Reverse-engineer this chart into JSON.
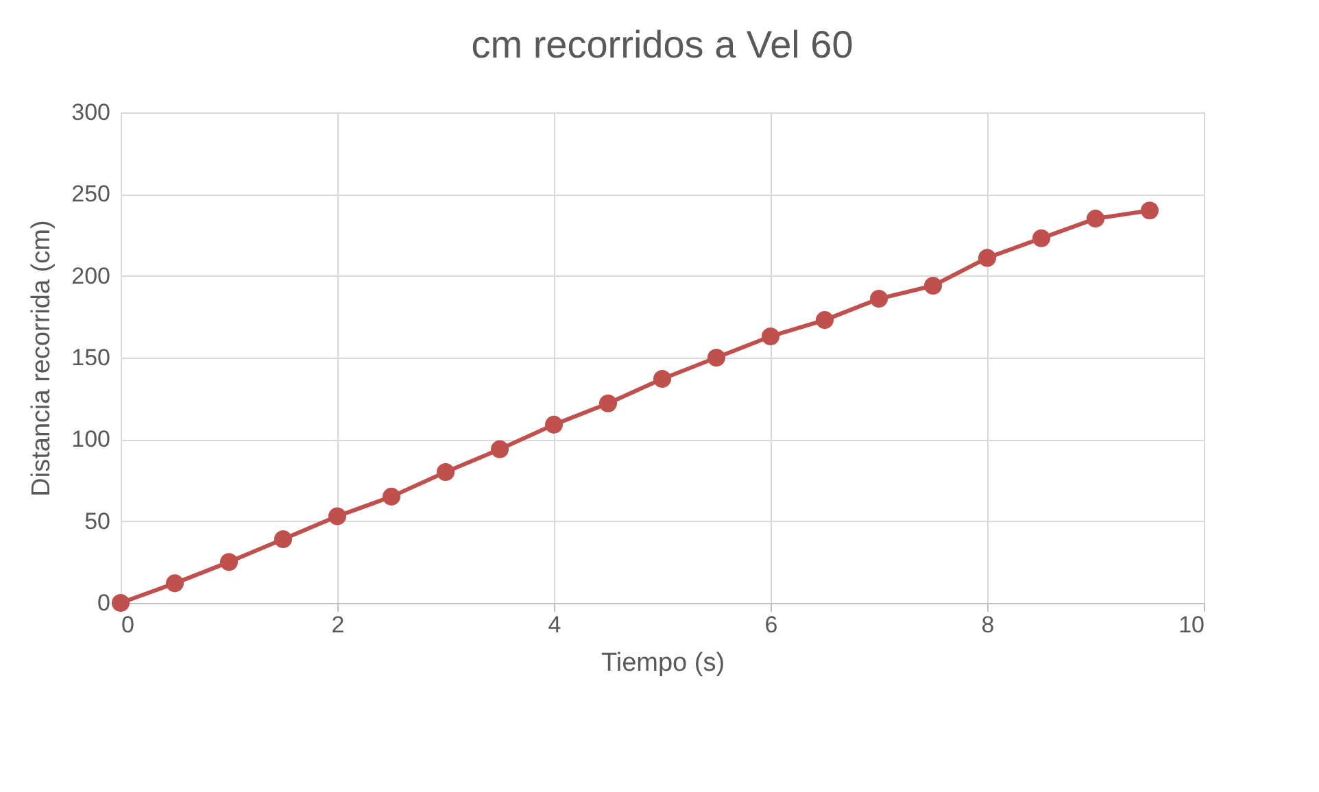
{
  "chart_data": {
    "type": "line",
    "title": "cm recorridos a Vel 60",
    "xlabel": "Tiempo (s)",
    "ylabel": "Distancia recorrida (cm)",
    "x": [
      0,
      0.5,
      1,
      1.5,
      2,
      2.5,
      3,
      3.5,
      4,
      4.5,
      5,
      5.5,
      6,
      6.5,
      7,
      7.5,
      8,
      8.5,
      9,
      9.5
    ],
    "series": [
      {
        "color": "#c0504d",
        "values": [
          0,
          12,
          25,
          39,
          53,
          65,
          80,
          94,
          109,
          122,
          137,
          150,
          163,
          173,
          186,
          194,
          211,
          223,
          235,
          240
        ]
      }
    ],
    "xlim": [
      0,
      10
    ],
    "xticks": [
      0,
      2,
      4,
      6,
      8,
      10
    ],
    "ylim": [
      0,
      300
    ],
    "yticks": [
      0,
      50,
      100,
      150,
      200,
      250,
      300
    ],
    "grid": true,
    "marker": "circle",
    "line_style": "solid"
  }
}
